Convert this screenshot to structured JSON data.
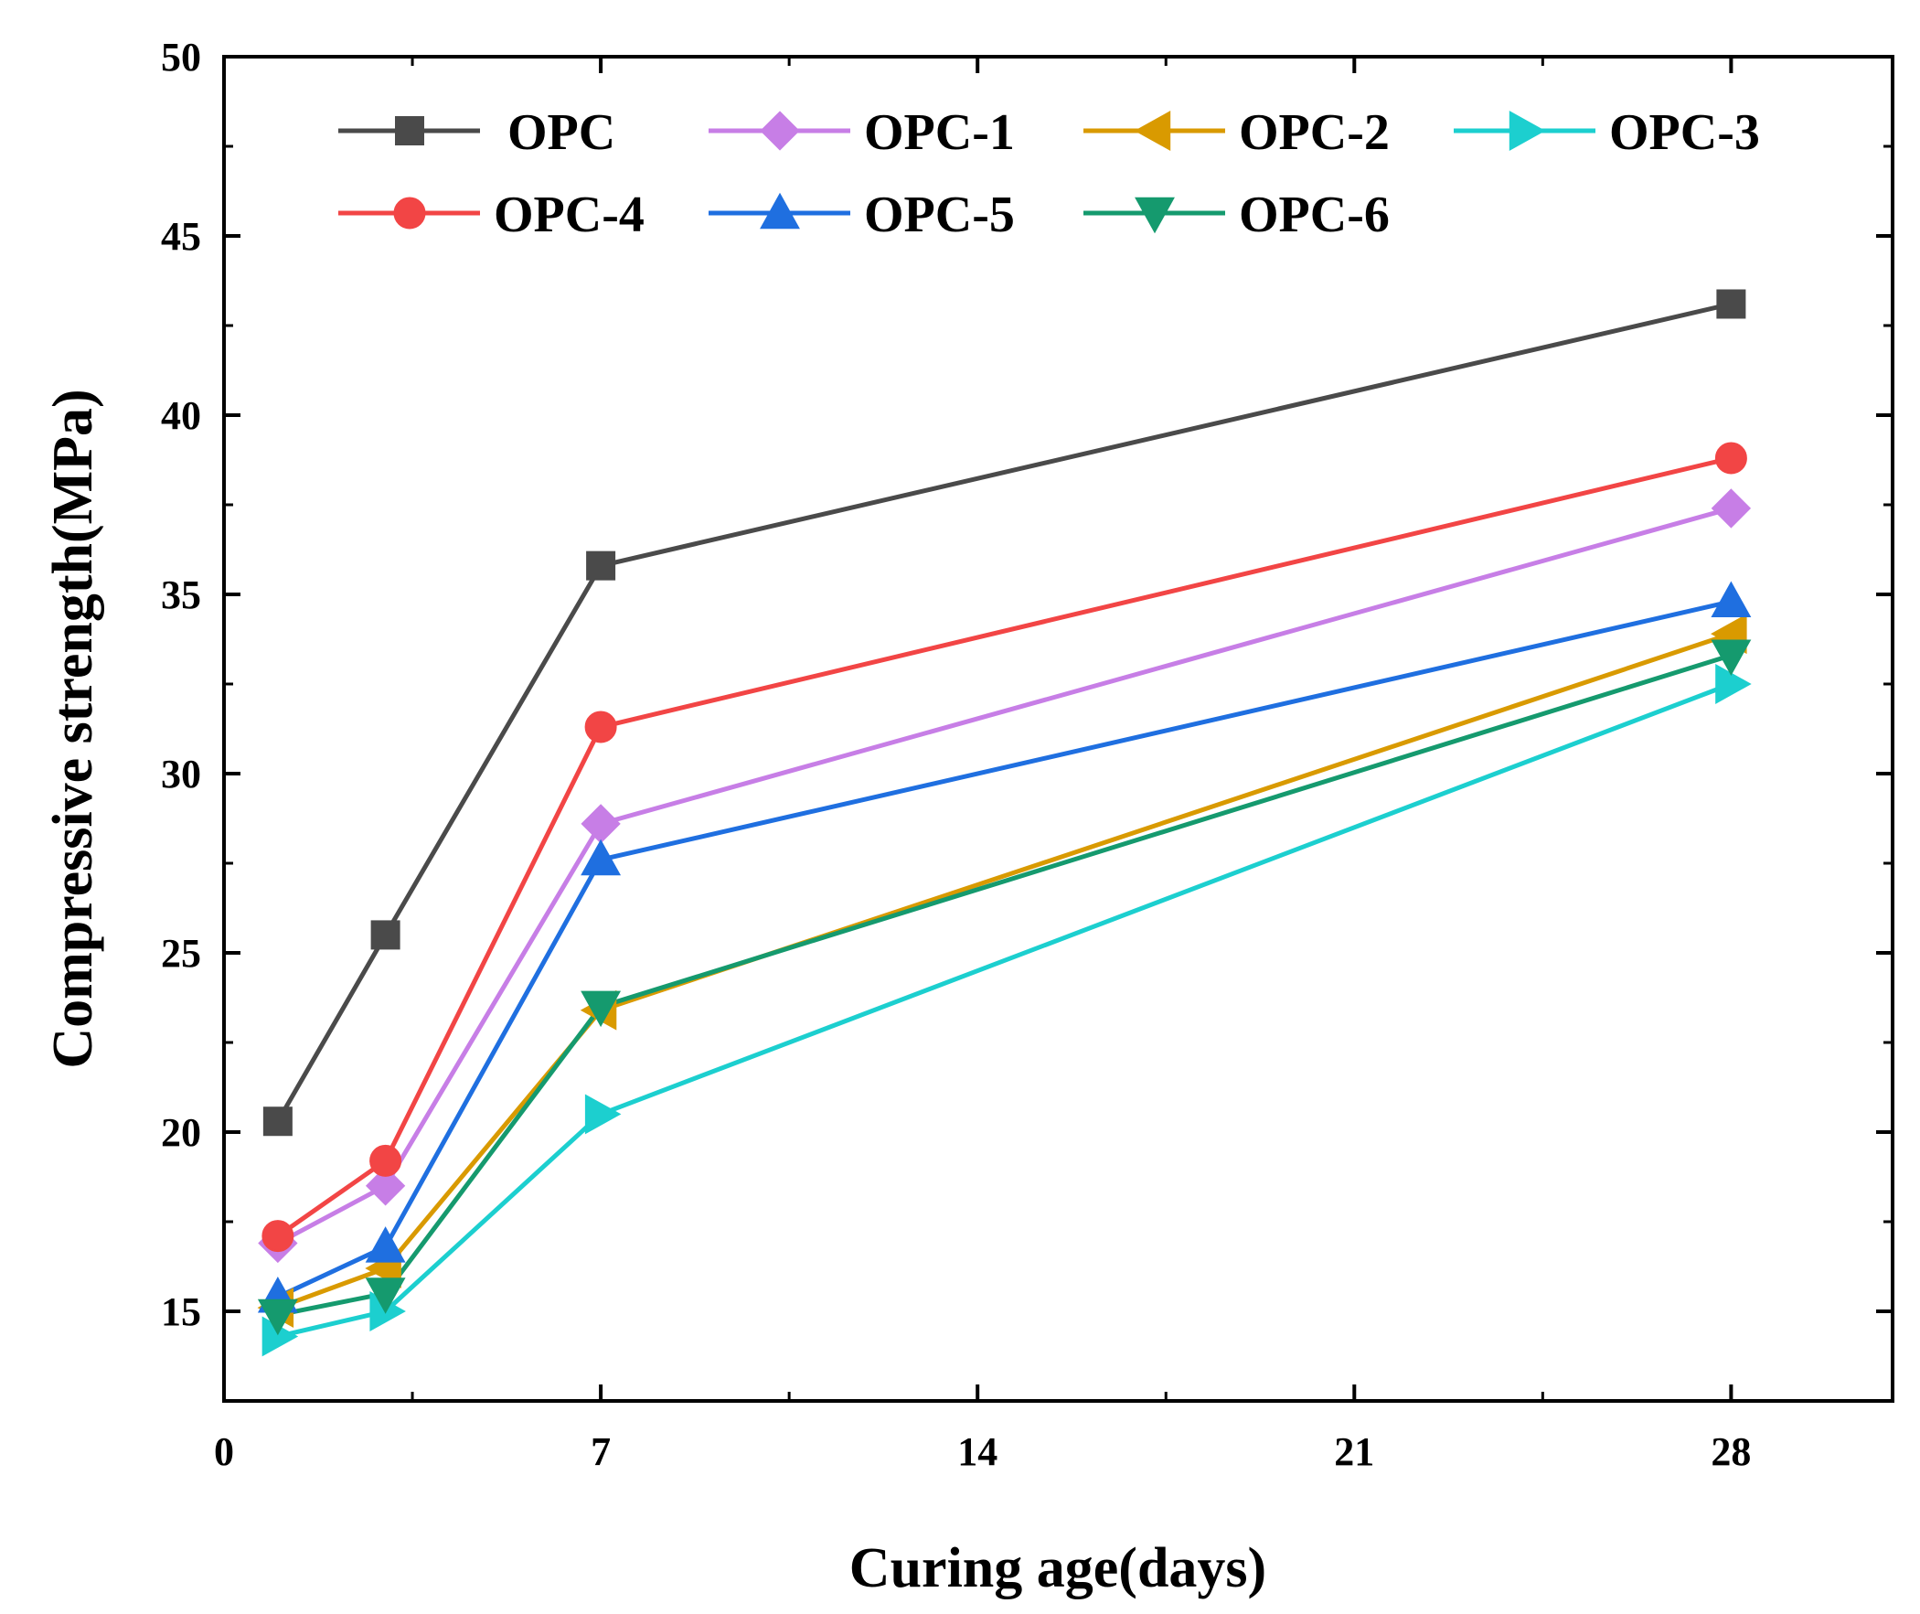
{
  "chart_data": {
    "type": "line",
    "title": "",
    "xlabel": "Curing age(days)",
    "ylabel": "Compressive strength(MPa)",
    "xlim": [
      0,
      31
    ],
    "ylim": [
      12.5,
      50
    ],
    "x_ticks": [
      0,
      7,
      14,
      21,
      28
    ],
    "y_ticks": [
      15,
      20,
      25,
      30,
      35,
      40,
      45,
      50
    ],
    "x_tick_labels": [
      "0",
      "7",
      "14",
      "21",
      "28"
    ],
    "y_tick_labels": [
      "15",
      "20",
      "25",
      "30",
      "35",
      "40",
      "45",
      "50"
    ],
    "x": [
      1,
      3,
      7,
      28
    ],
    "legend_position": "top",
    "series": [
      {
        "name": "OPC",
        "color": "#4a4a4a",
        "marker": "square",
        "values": [
          20.3,
          25.5,
          35.8,
          43.1
        ]
      },
      {
        "name": "OPC-1",
        "color": "#c77ee6",
        "marker": "diamond",
        "values": [
          16.9,
          18.5,
          28.6,
          37.4
        ]
      },
      {
        "name": "OPC-2",
        "color": "#d99a00",
        "marker": "triangle-left",
        "values": [
          15.1,
          16.2,
          23.4,
          33.9
        ]
      },
      {
        "name": "OPC-3",
        "color": "#1ccfcf",
        "marker": "triangle-right",
        "values": [
          14.3,
          15.0,
          20.5,
          32.5
        ]
      },
      {
        "name": "OPC-4",
        "color": "#f24545",
        "marker": "circle",
        "values": [
          17.1,
          19.2,
          31.3,
          38.8
        ]
      },
      {
        "name": "OPC-5",
        "color": "#1f6fe0",
        "marker": "triangle-up",
        "values": [
          15.4,
          16.8,
          27.6,
          34.8
        ]
      },
      {
        "name": "OPC-6",
        "color": "#159a6e",
        "marker": "triangle-down",
        "values": [
          14.9,
          15.5,
          23.5,
          33.3
        ]
      }
    ]
  }
}
